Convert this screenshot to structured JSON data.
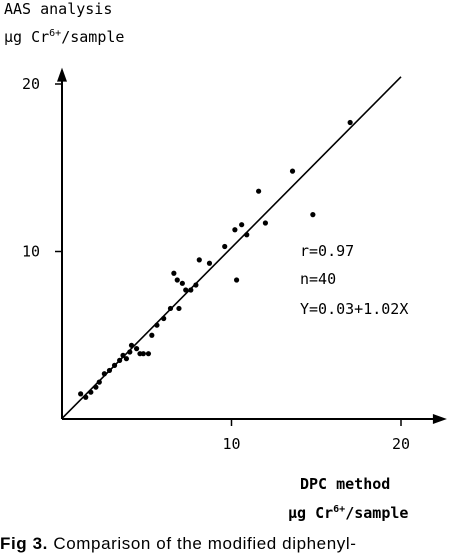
{
  "y_axis_title": {
    "line1": "AAS analysis",
    "line2_prefix": "µg Cr",
    "line2_sup": "6+",
    "line2_suffix": "/sample"
  },
  "x_axis_title": {
    "line1": "DPC method",
    "line2_prefix": "µg Cr",
    "line2_sup": "6+",
    "line2_suffix": "/sample"
  },
  "stats": {
    "r": "r=0.97",
    "n": "n=40",
    "eq": "Y=0.03+1.02X"
  },
  "caption": {
    "label": "Fig 3.",
    "text": "Comparison of the modified diphenyl-"
  },
  "colors": {
    "ink": "#000000",
    "background": "#ffffff"
  },
  "chart_data": {
    "type": "scatter",
    "xlim": [
      0,
      22
    ],
    "ylim": [
      0,
      20.5
    ],
    "x_ticks": [
      10,
      20
    ],
    "x_tick_labels": [
      "10",
      "20"
    ],
    "y_ticks": [
      10,
      20
    ],
    "y_tick_labels": [
      "10",
      "20"
    ],
    "grid": false,
    "regression_line": {
      "intercept": 0.03,
      "slope": 1.02,
      "x_range": [
        0,
        20
      ]
    },
    "points": [
      {
        "x": 1.1,
        "y": 1.5
      },
      {
        "x": 1.4,
        "y": 1.3
      },
      {
        "x": 1.7,
        "y": 1.6
      },
      {
        "x": 2.0,
        "y": 1.9
      },
      {
        "x": 2.2,
        "y": 2.2
      },
      {
        "x": 2.5,
        "y": 2.7
      },
      {
        "x": 2.8,
        "y": 2.9
      },
      {
        "x": 3.1,
        "y": 3.2
      },
      {
        "x": 3.4,
        "y": 3.5
      },
      {
        "x": 3.6,
        "y": 3.8
      },
      {
        "x": 3.8,
        "y": 3.6
      },
      {
        "x": 4.0,
        "y": 4.0
      },
      {
        "x": 4.1,
        "y": 4.4
      },
      {
        "x": 4.4,
        "y": 4.2
      },
      {
        "x": 4.6,
        "y": 3.9
      },
      {
        "x": 4.8,
        "y": 3.9
      },
      {
        "x": 5.1,
        "y": 3.9
      },
      {
        "x": 5.3,
        "y": 5.0
      },
      {
        "x": 5.6,
        "y": 5.6
      },
      {
        "x": 6.0,
        "y": 6.0
      },
      {
        "x": 6.4,
        "y": 6.6
      },
      {
        "x": 6.6,
        "y": 8.7
      },
      {
        "x": 6.8,
        "y": 8.3
      },
      {
        "x": 6.9,
        "y": 6.6
      },
      {
        "x": 7.1,
        "y": 8.1
      },
      {
        "x": 7.3,
        "y": 7.7
      },
      {
        "x": 7.6,
        "y": 7.7
      },
      {
        "x": 7.9,
        "y": 8.0
      },
      {
        "x": 8.1,
        "y": 9.5
      },
      {
        "x": 8.7,
        "y": 9.3
      },
      {
        "x": 9.6,
        "y": 10.3
      },
      {
        "x": 10.3,
        "y": 8.3
      },
      {
        "x": 10.2,
        "y": 11.3
      },
      {
        "x": 10.6,
        "y": 11.6
      },
      {
        "x": 10.9,
        "y": 11.0
      },
      {
        "x": 11.6,
        "y": 13.6
      },
      {
        "x": 12.0,
        "y": 11.7
      },
      {
        "x": 13.6,
        "y": 14.8
      },
      {
        "x": 14.8,
        "y": 12.2
      },
      {
        "x": 17.0,
        "y": 17.7
      }
    ]
  }
}
